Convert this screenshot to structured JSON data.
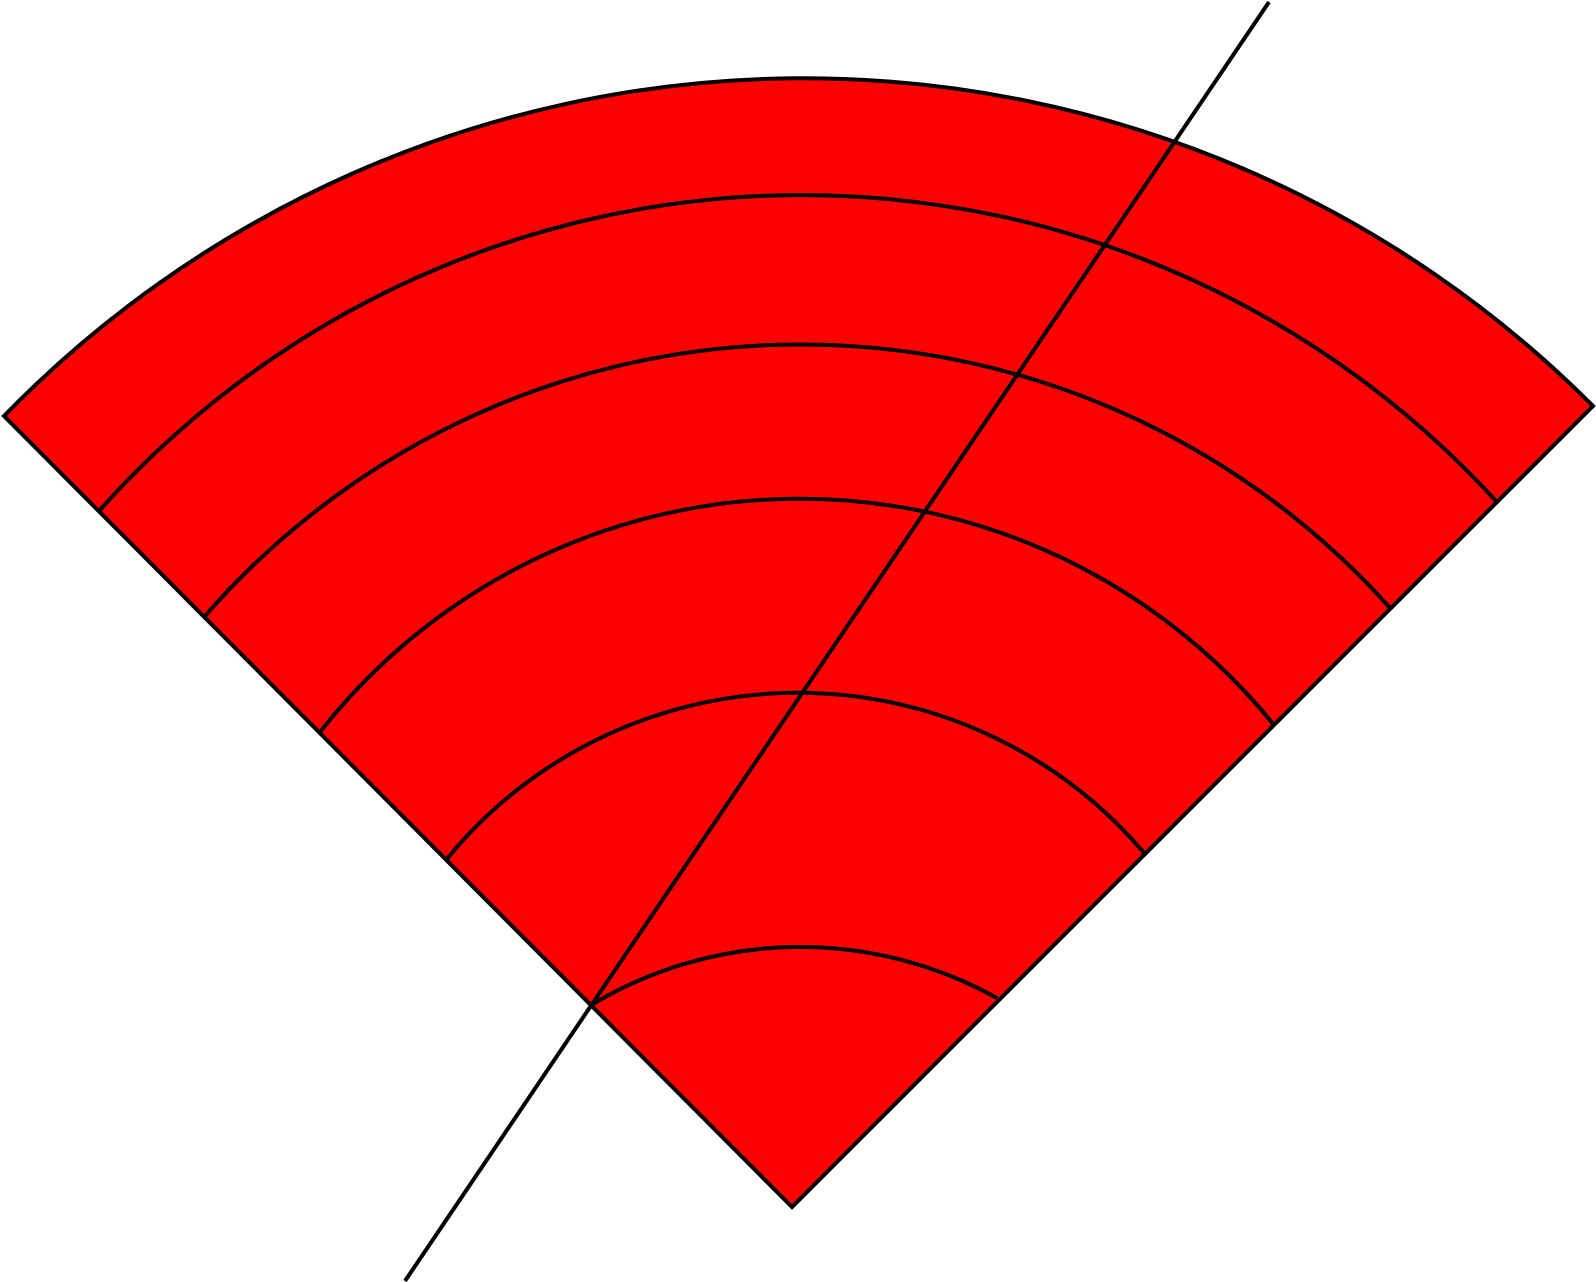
{
  "figure": {
    "icon": "wifi-signal-sector-icon",
    "shape": "circular-sector",
    "fill_color": "#ff0000",
    "stroke_color": "#000000",
    "background_color": "#ffffff",
    "ring_count": 6,
    "diagonal_line": true
  }
}
